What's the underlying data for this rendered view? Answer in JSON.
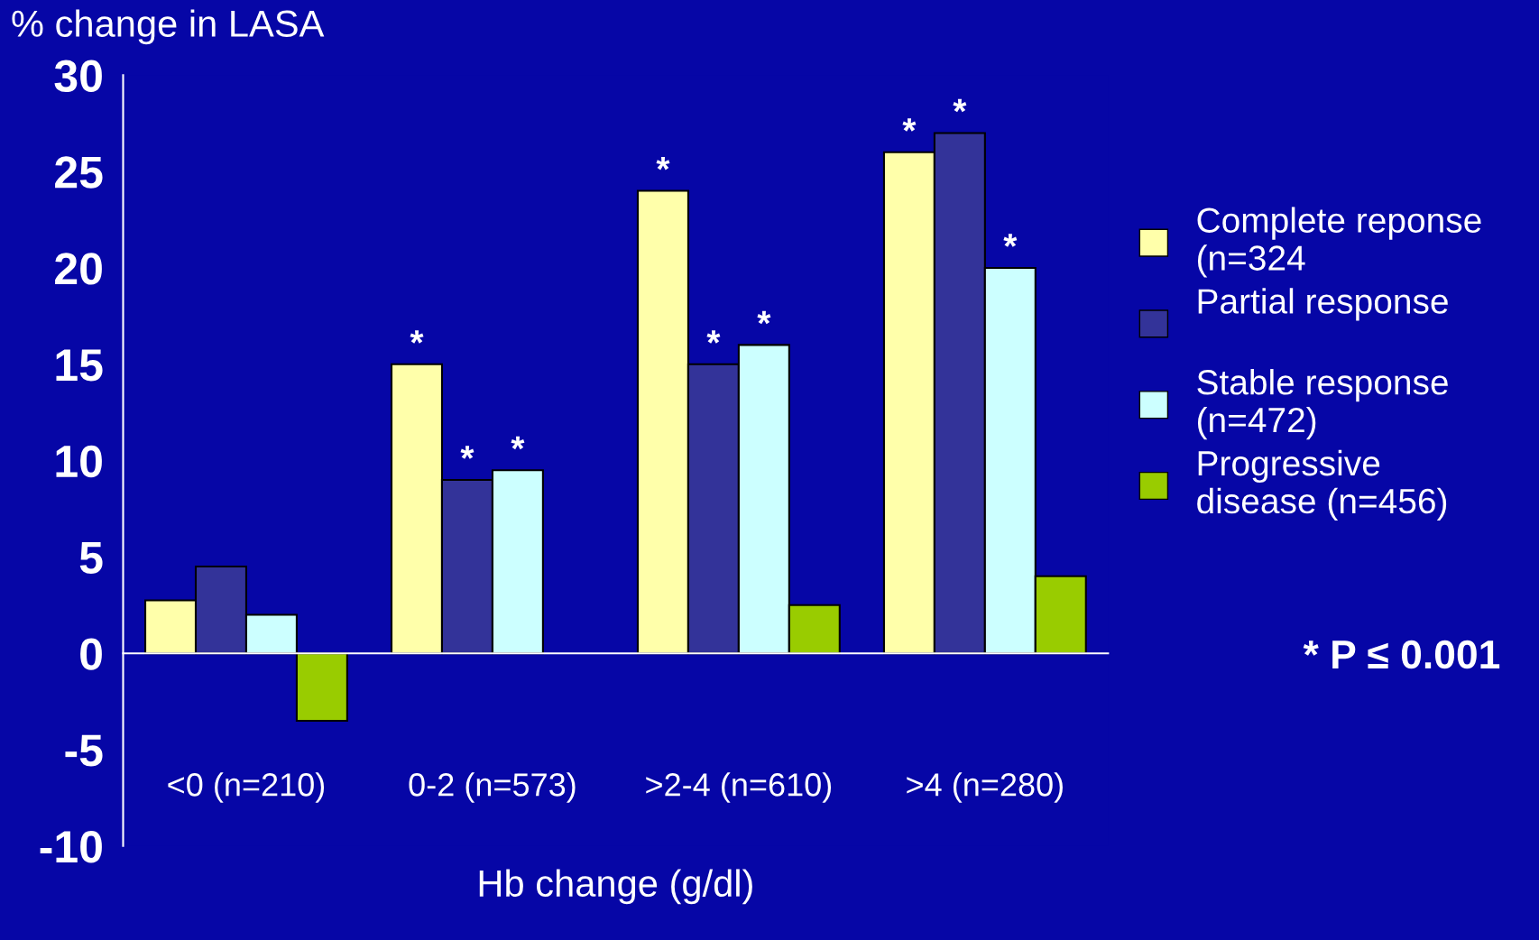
{
  "chart_data": {
    "type": "bar",
    "ylabel": "% change in LASA",
    "xlabel": "Hb change (g/dl)",
    "categories": [
      "<0 (n=210)",
      "0-2 (n=573)",
      ">2-4 (n=610)",
      ">4 (n=280)"
    ],
    "series": [
      {
        "name": "Complete reponse\n(n=324",
        "color": "#ffffaa",
        "values": [
          2.75,
          15,
          24,
          26
        ],
        "value_labels": [
          null,
          "*",
          "*",
          "*"
        ]
      },
      {
        "name": "Partial response\n",
        "color": "#333399",
        "values": [
          4.5,
          9,
          15,
          27
        ],
        "value_labels": [
          null,
          "*",
          "*",
          "*"
        ]
      },
      {
        "name": "Stable response\n(n=472)",
        "color": "#ccffff",
        "values": [
          2,
          9.5,
          16,
          20
        ],
        "value_labels": [
          null,
          "*",
          "*",
          "*"
        ]
      },
      {
        "name": "Progressive\ndisease (n=456)",
        "color": "#99cc00",
        "values": [
          -3.5,
          null,
          2.5,
          4
        ]
      }
    ],
    "ylim": [
      -10,
      30
    ],
    "yticks": [
      -10,
      -5,
      0,
      5,
      10,
      15,
      20,
      25,
      30
    ],
    "legend": "right",
    "annotations": [
      "* P ≤ 0.001"
    ]
  }
}
